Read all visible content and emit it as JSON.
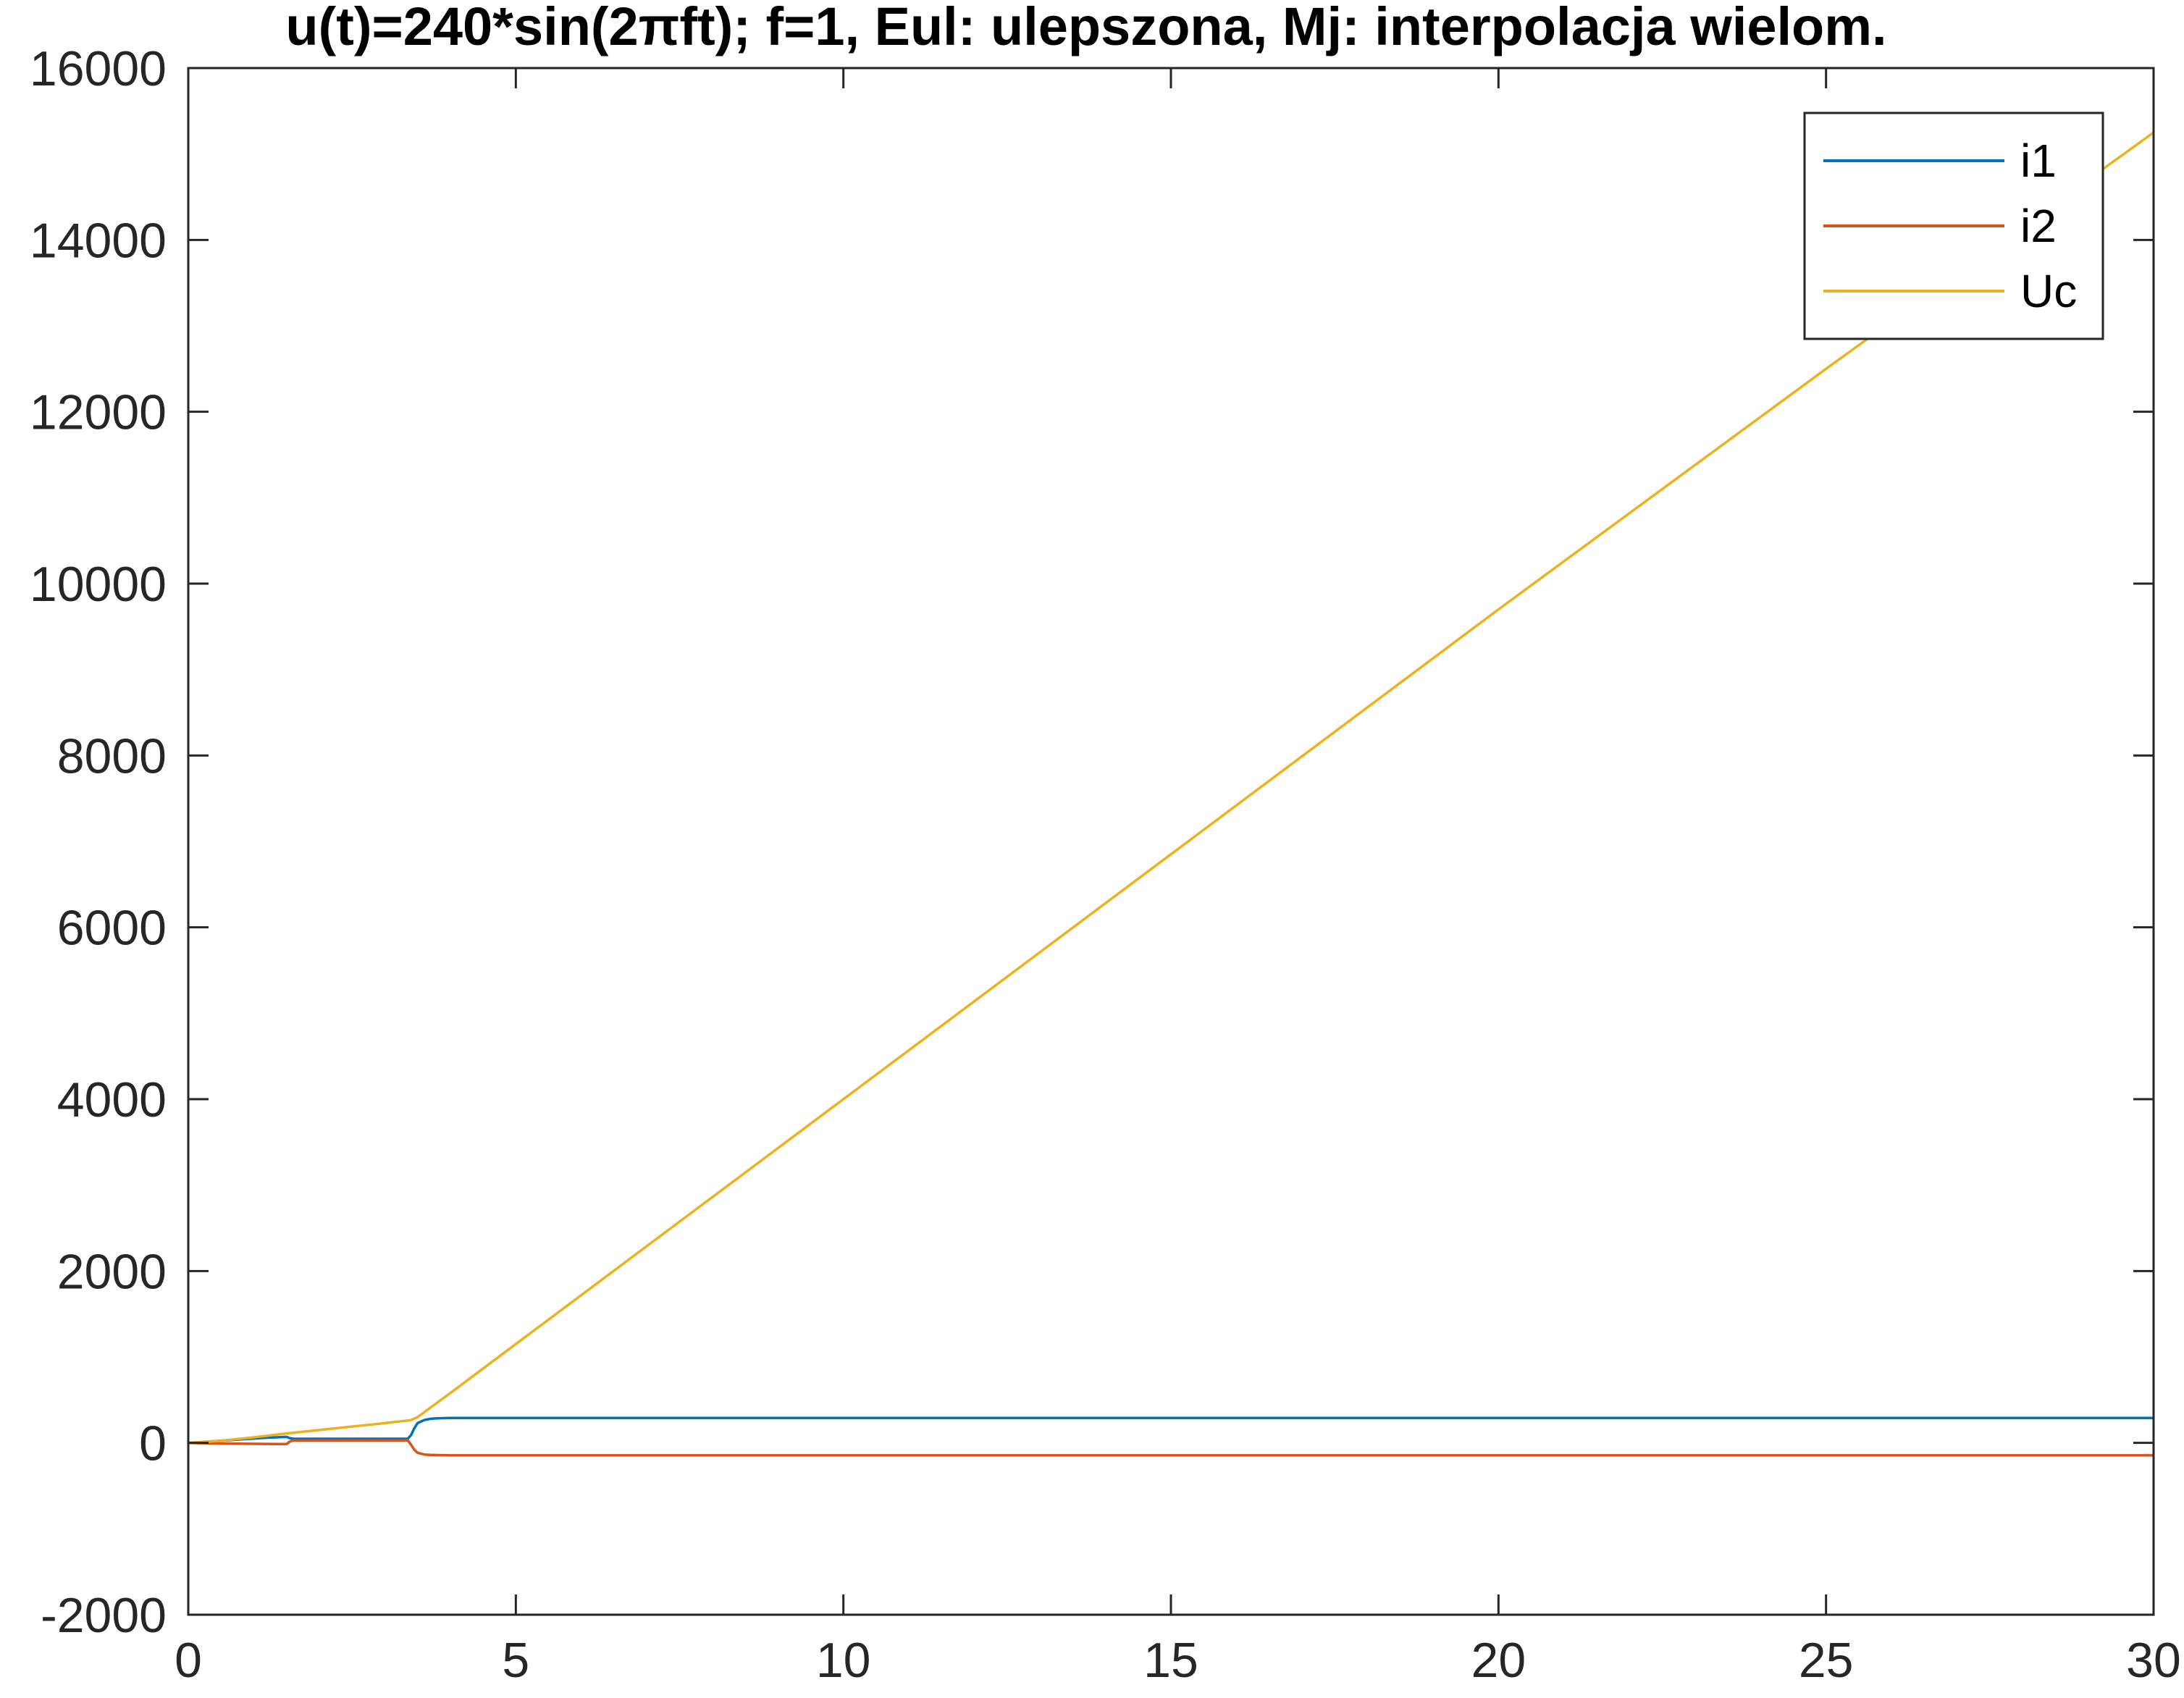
{
  "chart_data": {
    "type": "line",
    "title": "u(t)=240*sin(2πft); f=1, Eul: ulepszona, Mj: interpolacja wielom.",
    "xlabel": "",
    "ylabel": "",
    "xlim": [
      0,
      30
    ],
    "ylim": [
      -2000,
      16000
    ],
    "xticks": [
      0,
      5,
      10,
      15,
      20,
      25,
      30
    ],
    "yticks": [
      -2000,
      0,
      2000,
      4000,
      6000,
      8000,
      10000,
      12000,
      14000,
      16000
    ],
    "xtick_labels": [
      "0",
      "5",
      "10",
      "15",
      "20",
      "25",
      "30"
    ],
    "ytick_labels": [
      "-2000",
      "0",
      "2000",
      "4000",
      "6000",
      "8000",
      "10000",
      "12000",
      "14000",
      "16000"
    ],
    "grid": false,
    "legend_position": "top-right",
    "series": [
      {
        "name": "i1",
        "color": "#0072BD",
        "x": [
          0,
          0.3,
          0.6,
          0.9,
          1.2,
          1.5,
          1.55,
          1.6,
          2.0,
          2.5,
          3.0,
          3.35,
          3.4,
          3.45,
          3.5,
          3.6,
          3.7,
          3.8,
          4.0,
          4.5,
          5,
          10,
          15,
          20,
          25,
          30
        ],
        "y": [
          0,
          15,
          30,
          45,
          60,
          70,
          55,
          48,
          48,
          48,
          48,
          48,
          90,
          170,
          230,
          265,
          280,
          285,
          290,
          290,
          290,
          290,
          290,
          290,
          290,
          290
        ]
      },
      {
        "name": "i2",
        "color": "#D95319",
        "x": [
          0,
          0.3,
          0.6,
          0.9,
          1.2,
          1.5,
          1.55,
          1.6,
          2.0,
          2.5,
          3.0,
          3.35,
          3.4,
          3.45,
          3.5,
          3.6,
          3.7,
          3.8,
          4.0,
          4.5,
          5,
          10,
          15,
          20,
          25,
          30
        ],
        "y": [
          0,
          -5,
          -8,
          -10,
          -12,
          -14,
          15,
          28,
          28,
          28,
          28,
          28,
          -20,
          -80,
          -115,
          -135,
          -140,
          -142,
          -145,
          -145,
          -145,
          -145,
          -145,
          -145,
          -145,
          -145
        ]
      },
      {
        "name": "Uc",
        "color": "#EDB120",
        "x": [
          0,
          0.5,
          1.0,
          1.5,
          2.0,
          2.5,
          3.0,
          3.4,
          3.5,
          4.0,
          5,
          10,
          15,
          20,
          25,
          30
        ],
        "y": [
          0,
          25,
          65,
          110,
          150,
          190,
          230,
          265,
          300,
          580,
          1150,
          4000,
          6850,
          9700,
          12500,
          15250
        ]
      }
    ]
  }
}
